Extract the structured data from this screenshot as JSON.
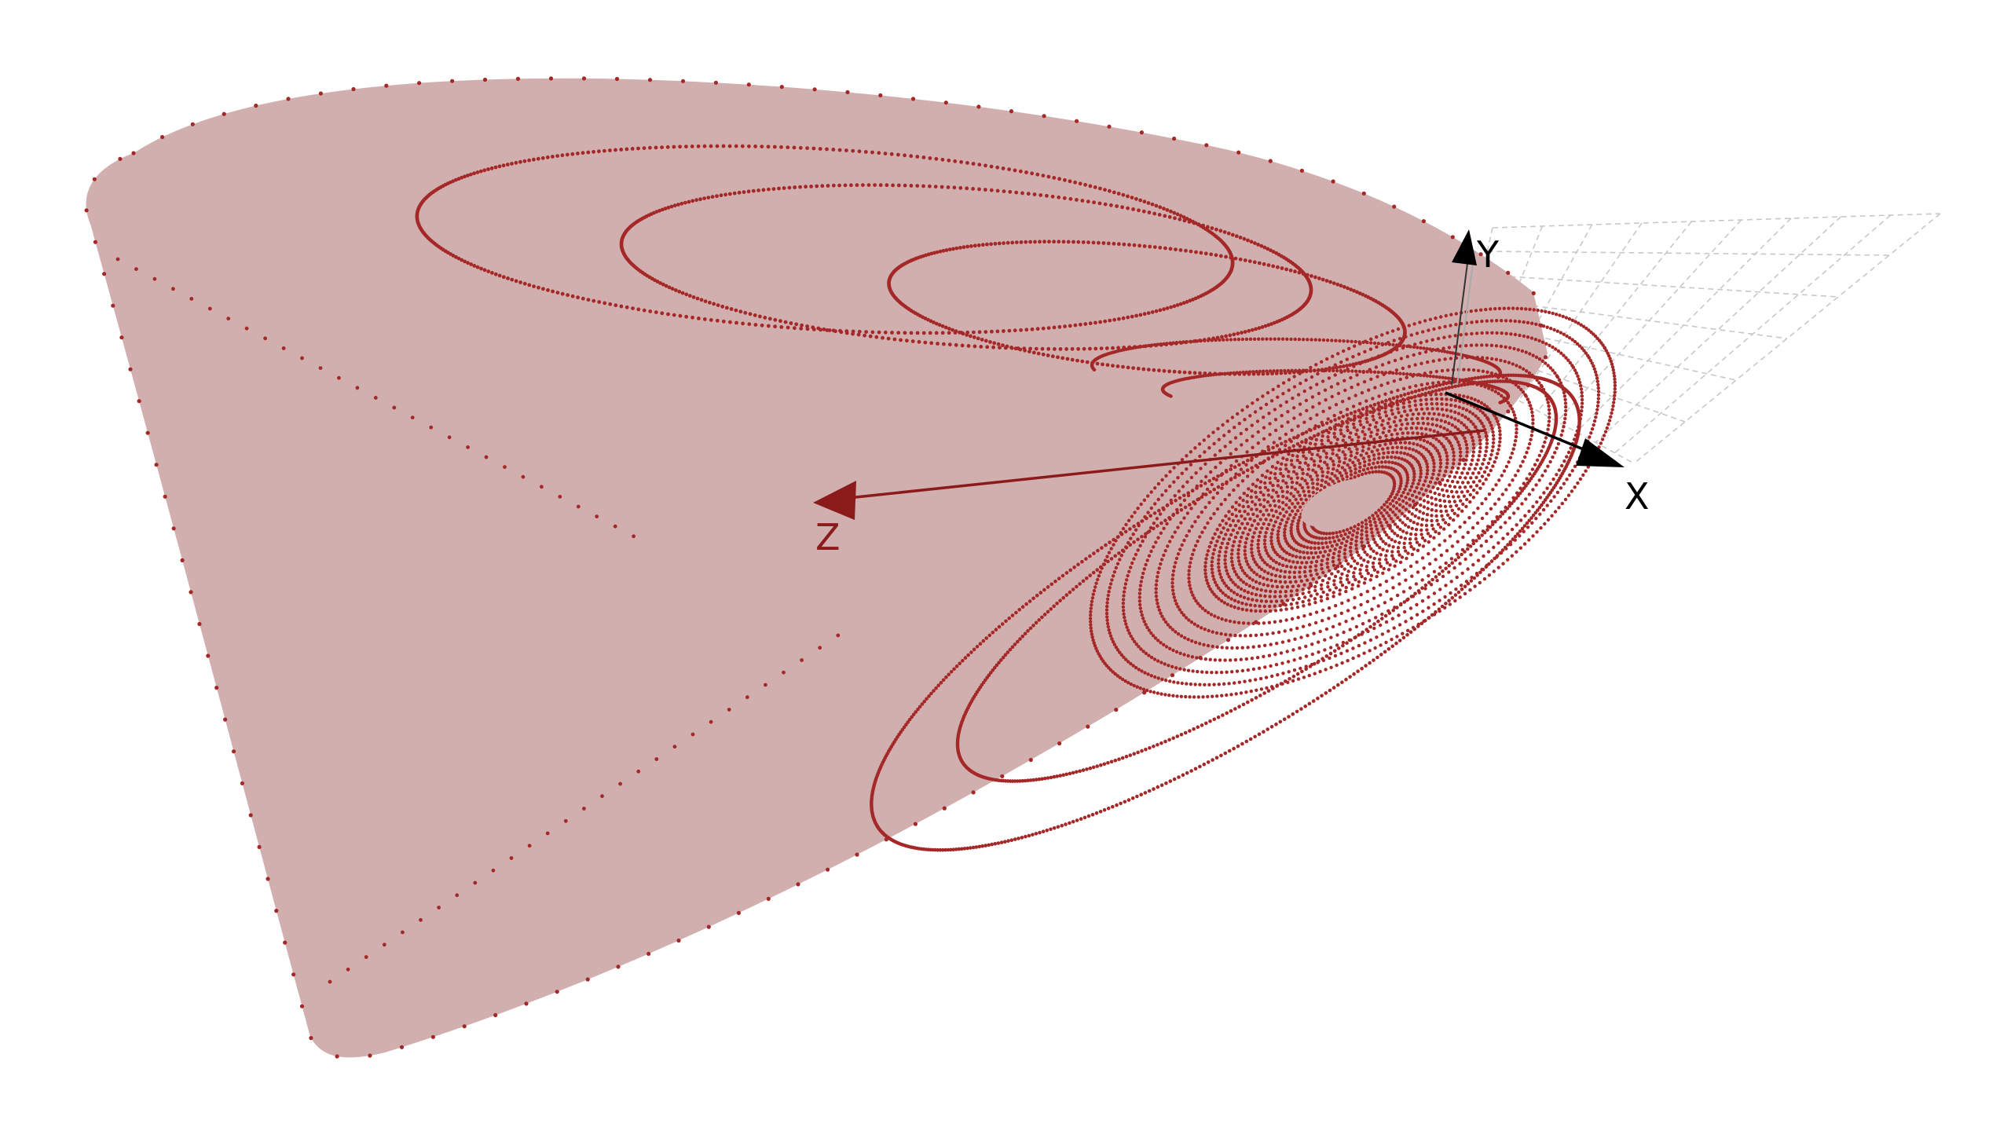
{
  "axes": {
    "x": {
      "label": "X",
      "color": "#000000"
    },
    "y": {
      "label": "Y",
      "color": "#000000"
    },
    "z": {
      "label": "Z",
      "color": "#8b1a1a"
    }
  },
  "colors": {
    "surface_fill": "#d2afaf",
    "points": "#a52828",
    "grid": "#c8c8c8"
  },
  "spirals": {
    "upper_loops": 3,
    "lower_loops": 24
  }
}
